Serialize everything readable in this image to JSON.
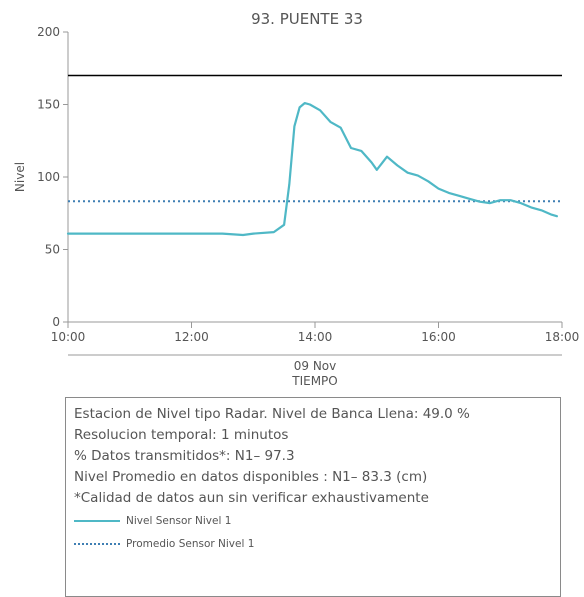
{
  "chart_data": {
    "type": "line",
    "title": "93. PUENTE 33",
    "ylabel": "Nivel",
    "xlabel": "TIEMPO",
    "date_label": "09 Nov",
    "ylim": [
      0,
      200
    ],
    "xlim": [
      "10:00",
      "18:00"
    ],
    "yticks": [
      "0",
      "50",
      "100",
      "150",
      "200"
    ],
    "xticks": [
      "10:00",
      "12:00",
      "14:00",
      "16:00",
      "18:00"
    ],
    "reference_level": 170,
    "average": 83.3,
    "series": [
      {
        "name": "Nivel Sensor Nivel 1",
        "x": [
          "10:00",
          "10:30",
          "11:00",
          "11:30",
          "12:00",
          "12:30",
          "12:50",
          "13:00",
          "13:20",
          "13:30",
          "13:35",
          "13:40",
          "13:45",
          "13:50",
          "13:55",
          "14:05",
          "14:15",
          "14:25",
          "14:35",
          "14:45",
          "14:55",
          "15:00",
          "15:10",
          "15:20",
          "15:30",
          "15:40",
          "15:50",
          "16:00",
          "16:10",
          "16:20",
          "16:30",
          "16:40",
          "16:50",
          "17:00",
          "17:10",
          "17:20",
          "17:30",
          "17:40",
          "17:50",
          "17:55"
        ],
        "y": [
          61,
          61,
          61,
          61,
          61,
          61,
          60,
          61,
          62,
          67,
          95,
          135,
          148,
          151,
          150,
          146,
          138,
          134,
          120,
          118,
          110,
          105,
          114,
          108,
          103,
          101,
          97,
          92,
          89,
          87,
          85,
          83,
          82,
          84,
          84,
          82,
          79,
          77,
          74,
          73
        ]
      },
      {
        "name": "Promedio Sensor Nivel 1",
        "x": [
          "10:00",
          "18:00"
        ],
        "y": [
          83.3,
          83.3
        ]
      }
    ]
  },
  "info": {
    "lines": [
      "Estacion de Nivel tipo Radar. Nivel de Banca Llena: 49.0 %",
      "Resolucion temporal: 1 minutos",
      "% Datos transmitidos*: N1– 97.3",
      "Nivel Promedio en datos disponibles : N1– 83.3 (cm)",
      "*Calidad de datos aun sin verificar exhaustivamente"
    ],
    "legend": [
      "Nivel Sensor Nivel 1",
      "Promedio Sensor Nivel 1"
    ]
  },
  "colors": {
    "level_line": "#4fb8c6",
    "average_line": "#3f7fb3",
    "reference_line": "#000000",
    "axis": "#999999"
  }
}
